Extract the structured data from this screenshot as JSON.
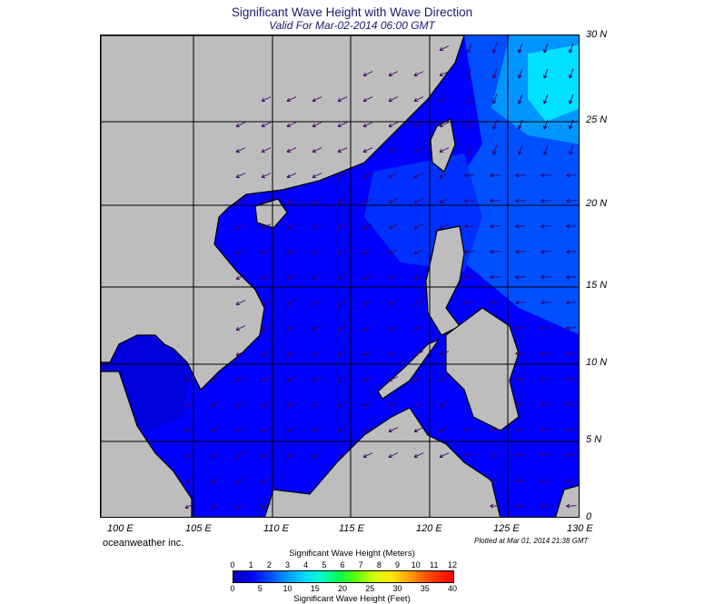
{
  "header": {
    "title": "Significant Wave Height with Wave Direction",
    "subtitle": "Valid For Mar-02-2014 06:00 GMT"
  },
  "map": {
    "lat_labels": [
      "30 N",
      "25 N",
      "20 N",
      "15 N",
      "10 N",
      "5 N",
      "0"
    ],
    "lon_labels": [
      "100 E",
      "105 E",
      "110 E",
      "115 E",
      "120 E",
      "125 E",
      "130 E"
    ],
    "colors": {
      "land": "#bdbdbd",
      "coast": "#000000",
      "sea_low": "#0000ff",
      "sea_mid": "#0050ff",
      "sea_high": "#00b4ff",
      "sea_peak": "#00e6ff",
      "arrow": "#3a0060"
    }
  },
  "footer": {
    "credit": "oceanweather inc.",
    "plotted": "Plotted at Mar 01, 2014 21:38 GMT"
  },
  "legend": {
    "meters_title": "Significant Wave Height (Meters)",
    "feet_title": "Significant Wave Height (Feet)",
    "meters_ticks": [
      "0",
      "1",
      "2",
      "3",
      "4",
      "5",
      "6",
      "7",
      "8",
      "9",
      "10",
      "11",
      "12"
    ],
    "feet_ticks": [
      "0",
      "5",
      "10",
      "15",
      "20",
      "25",
      "30",
      "35",
      "40"
    ]
  }
}
